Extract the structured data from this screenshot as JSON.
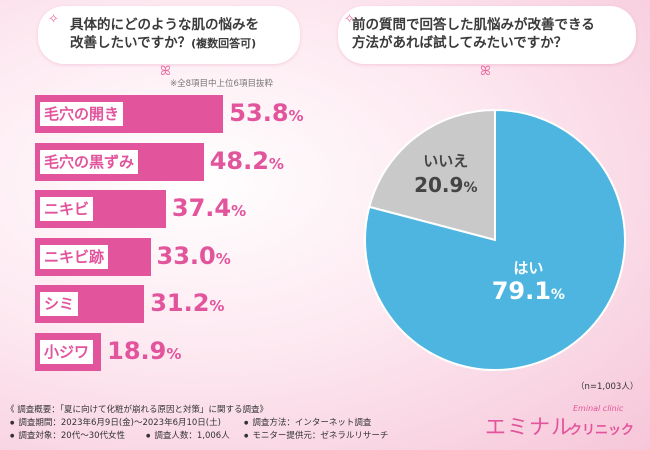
{
  "left_question": {
    "line1": "具体的にどのような肌の悩みを",
    "line2": "改善したいですか？",
    "note": "(複数回答可)"
  },
  "right_question": {
    "line1": "前の質問で回答した肌悩みが改善できる",
    "line2": "方法があれば試してみたいですか？"
  },
  "bar_note": "※全8項目中上位6項目抜粋",
  "chart_data": [
    {
      "type": "bar",
      "orientation": "horizontal",
      "categories": [
        "毛穴の開き",
        "毛穴の黒ずみ",
        "ニキビ",
        "ニキビ跡",
        "シミ",
        "小ジワ"
      ],
      "values": [
        53.8,
        48.2,
        37.4,
        33.0,
        31.2,
        18.9
      ],
      "value_labels": [
        "53.8",
        "48.2",
        "37.4",
        "33.0",
        "31.2",
        "18.9"
      ],
      "unit": "%",
      "color": "#e2549c"
    },
    {
      "type": "pie",
      "categories": [
        "はい",
        "いいえ"
      ],
      "values": [
        79.1,
        20.9
      ],
      "value_labels": [
        "79.1",
        "20.9"
      ],
      "unit": "%",
      "colors": [
        "#4db5df",
        "#c9c9c9"
      ],
      "note": "（n=1,003人）"
    }
  ],
  "survey": {
    "title": "《 調査概要：「夏に向けて化粧が崩れる原因と対策」に関する調査》",
    "period": "調査期間：2023年6月9日(金)～2023年6月10日(土)",
    "method": "調査方法：インターネット調査",
    "target": "調査対象：20代～30代女性",
    "count": "調査人数：1,006人",
    "provider": "モニター提供元：ゼネラルリサーチ"
  },
  "logo": {
    "main": "エミナル",
    "sub": "クリニック",
    "script": "Eminal clinic"
  }
}
